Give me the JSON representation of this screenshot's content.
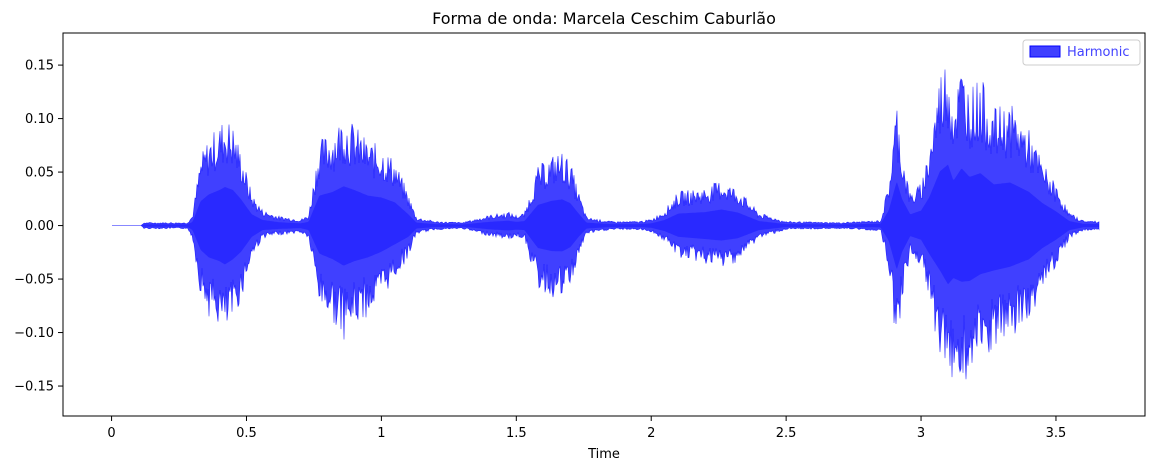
{
  "chart_data": {
    "type": "area",
    "title": "Forma de onda: Marcela Ceschim Caburlão",
    "xlabel": "Time",
    "ylabel": "",
    "xlim": [
      -0.18,
      3.83
    ],
    "ylim": [
      -0.178,
      0.18
    ],
    "x_ticks": [
      0,
      0.5,
      1,
      1.5,
      2,
      2.5,
      3,
      3.5
    ],
    "x_tick_labels": [
      "0",
      "0.5",
      "1",
      "1.5",
      "2",
      "2.5",
      "3",
      "3.5"
    ],
    "y_ticks": [
      -0.15,
      -0.1,
      -0.05,
      0.0,
      0.05,
      0.1,
      0.15
    ],
    "y_tick_labels": [
      "−0.15",
      "−0.10",
      "−0.05",
      "0.00",
      "0.05",
      "0.10",
      "0.15"
    ],
    "grid": false,
    "legend_position": "top-right",
    "series": [
      {
        "name": "Harmonic",
        "color": "#0000ff",
        "opacity": 0.75,
        "envelope_top": [
          [
            0,
            0.0
          ],
          [
            0.11,
            0.0
          ],
          [
            0.12,
            0.003
          ],
          [
            0.28,
            0.003
          ],
          [
            0.3,
            0.01
          ],
          [
            0.33,
            0.065
          ],
          [
            0.36,
            0.083
          ],
          [
            0.4,
            0.095
          ],
          [
            0.42,
            0.103
          ],
          [
            0.45,
            0.095
          ],
          [
            0.48,
            0.07
          ],
          [
            0.52,
            0.03
          ],
          [
            0.56,
            0.015
          ],
          [
            0.62,
            0.009
          ],
          [
            0.7,
            0.006
          ],
          [
            0.73,
            0.01
          ],
          [
            0.77,
            0.08
          ],
          [
            0.82,
            0.09
          ],
          [
            0.86,
            0.105
          ],
          [
            0.9,
            0.095
          ],
          [
            0.95,
            0.08
          ],
          [
            1.0,
            0.075
          ],
          [
            1.05,
            0.062
          ],
          [
            1.1,
            0.03
          ],
          [
            1.13,
            0.008
          ],
          [
            1.2,
            0.004
          ],
          [
            1.3,
            0.003
          ],
          [
            1.4,
            0.01
          ],
          [
            1.47,
            0.013
          ],
          [
            1.5,
            0.01
          ],
          [
            1.53,
            0.012
          ],
          [
            1.58,
            0.055
          ],
          [
            1.63,
            0.066
          ],
          [
            1.67,
            0.07
          ],
          [
            1.7,
            0.06
          ],
          [
            1.73,
            0.033
          ],
          [
            1.76,
            0.008
          ],
          [
            1.85,
            0.004
          ],
          [
            1.95,
            0.004
          ],
          [
            2.0,
            0.006
          ],
          [
            2.05,
            0.015
          ],
          [
            2.1,
            0.032
          ],
          [
            2.2,
            0.036
          ],
          [
            2.26,
            0.043
          ],
          [
            2.32,
            0.035
          ],
          [
            2.4,
            0.012
          ],
          [
            2.5,
            0.004
          ],
          [
            2.7,
            0.003
          ],
          [
            2.85,
            0.005
          ],
          [
            2.88,
            0.04
          ],
          [
            2.91,
            0.118
          ],
          [
            2.93,
            0.07
          ],
          [
            2.96,
            0.03
          ],
          [
            3.0,
            0.04
          ],
          [
            3.03,
            0.075
          ],
          [
            3.07,
            0.145
          ],
          [
            3.1,
            0.163
          ],
          [
            3.12,
            0.12
          ],
          [
            3.15,
            0.153
          ],
          [
            3.18,
            0.13
          ],
          [
            3.22,
            0.14
          ],
          [
            3.27,
            0.11
          ],
          [
            3.33,
            0.115
          ],
          [
            3.4,
            0.09
          ],
          [
            3.45,
            0.06
          ],
          [
            3.5,
            0.038
          ],
          [
            3.55,
            0.012
          ],
          [
            3.6,
            0.005
          ],
          [
            3.66,
            0.004
          ]
        ],
        "envelope_bottom": [
          [
            0,
            0.0
          ],
          [
            0.11,
            0.0
          ],
          [
            0.12,
            -0.003
          ],
          [
            0.28,
            -0.003
          ],
          [
            0.3,
            -0.012
          ],
          [
            0.33,
            -0.065
          ],
          [
            0.36,
            -0.085
          ],
          [
            0.4,
            -0.095
          ],
          [
            0.42,
            -0.104
          ],
          [
            0.45,
            -0.09
          ],
          [
            0.48,
            -0.07
          ],
          [
            0.52,
            -0.03
          ],
          [
            0.56,
            -0.012
          ],
          [
            0.62,
            -0.009
          ],
          [
            0.7,
            -0.007
          ],
          [
            0.73,
            -0.012
          ],
          [
            0.77,
            -0.075
          ],
          [
            0.82,
            -0.09
          ],
          [
            0.86,
            -0.107
          ],
          [
            0.9,
            -0.095
          ],
          [
            0.95,
            -0.085
          ],
          [
            1.0,
            -0.07
          ],
          [
            1.05,
            -0.05
          ],
          [
            1.1,
            -0.03
          ],
          [
            1.13,
            -0.008
          ],
          [
            1.2,
            -0.004
          ],
          [
            1.3,
            -0.003
          ],
          [
            1.4,
            -0.01
          ],
          [
            1.47,
            -0.013
          ],
          [
            1.5,
            -0.011
          ],
          [
            1.53,
            -0.012
          ],
          [
            1.58,
            -0.06
          ],
          [
            1.63,
            -0.068
          ],
          [
            1.67,
            -0.069
          ],
          [
            1.7,
            -0.058
          ],
          [
            1.73,
            -0.031
          ],
          [
            1.76,
            -0.008
          ],
          [
            1.85,
            -0.004
          ],
          [
            1.95,
            -0.004
          ],
          [
            2.0,
            -0.006
          ],
          [
            2.05,
            -0.015
          ],
          [
            2.1,
            -0.03
          ],
          [
            2.2,
            -0.036
          ],
          [
            2.26,
            -0.04
          ],
          [
            2.32,
            -0.034
          ],
          [
            2.4,
            -0.012
          ],
          [
            2.5,
            -0.004
          ],
          [
            2.7,
            -0.003
          ],
          [
            2.85,
            -0.005
          ],
          [
            2.88,
            -0.04
          ],
          [
            2.91,
            -0.118
          ],
          [
            2.93,
            -0.07
          ],
          [
            2.96,
            -0.028
          ],
          [
            3.0,
            -0.038
          ],
          [
            3.03,
            -0.075
          ],
          [
            3.07,
            -0.12
          ],
          [
            3.1,
            -0.157
          ],
          [
            3.12,
            -0.14
          ],
          [
            3.15,
            -0.15
          ],
          [
            3.18,
            -0.148
          ],
          [
            3.22,
            -0.13
          ],
          [
            3.27,
            -0.12
          ],
          [
            3.33,
            -0.11
          ],
          [
            3.4,
            -0.09
          ],
          [
            3.45,
            -0.06
          ],
          [
            3.5,
            -0.038
          ],
          [
            3.55,
            -0.012
          ],
          [
            3.6,
            -0.005
          ],
          [
            3.66,
            -0.004
          ]
        ]
      }
    ]
  }
}
